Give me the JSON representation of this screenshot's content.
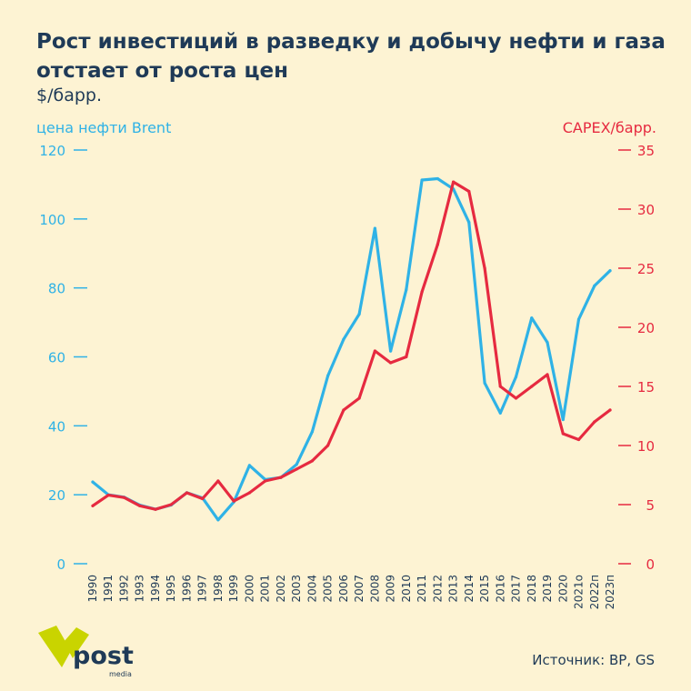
{
  "title": "Рост инвестиций в разведку и добычу нефти и газа отстает от роста цен",
  "subtitle": "$/барр.",
  "left_axis_label": "цена нефти Brent",
  "right_axis_label": "CAPEX/барр.",
  "source": "Источник: BP, GS",
  "logo": {
    "text": "post",
    "subtext": "media",
    "color": "#c9d400"
  },
  "colors": {
    "background": "#fdf3d3",
    "brent": "#2fb2e6",
    "capex": "#e62a40",
    "text": "#1f3a57"
  },
  "chart_data": {
    "type": "line",
    "title": "Рост инвестиций в разведку и добычу нефти и газа отстает от роста цен",
    "x": [
      "1990",
      "1991",
      "1992",
      "1993",
      "1994",
      "1995",
      "1996",
      "1997",
      "1998",
      "1999",
      "2000",
      "2001",
      "2002",
      "2003",
      "2004",
      "2005",
      "2006",
      "2007",
      "2008",
      "2009",
      "2010",
      "2011",
      "2012",
      "2013",
      "2014",
      "2015",
      "2016",
      "2017",
      "2018",
      "2019",
      "2020",
      "2021о",
      "2022п",
      "2023п"
    ],
    "y_left": {
      "label": "цена нефти Brent",
      "range": [
        0,
        120
      ],
      "ticks": [
        0,
        20,
        40,
        60,
        80,
        100,
        120
      ]
    },
    "y_right": {
      "label": "CAPEX/барр.",
      "range": [
        0,
        35
      ],
      "ticks": [
        0,
        5,
        10,
        15,
        20,
        25,
        30,
        35
      ]
    },
    "series": [
      {
        "name": "цена нефти Brent",
        "axis": "left",
        "color": "#2fb2e6",
        "values": [
          23.7,
          20.0,
          19.3,
          17.0,
          15.8,
          17.0,
          20.6,
          19.1,
          12.7,
          17.9,
          28.5,
          24.4,
          25.0,
          28.8,
          38.3,
          54.5,
          65.1,
          72.4,
          97.3,
          61.7,
          79.5,
          111.3,
          111.7,
          108.7,
          99.0,
          52.4,
          43.7,
          54.2,
          71.3,
          64.2,
          41.8,
          70.9,
          80.6,
          85.0
        ]
      },
      {
        "name": "CAPEX/барр.",
        "axis": "right",
        "color": "#e62a40",
        "values": [
          4.9,
          5.8,
          5.6,
          4.9,
          4.6,
          5.0,
          6.0,
          5.5,
          7.0,
          5.3,
          6.0,
          7.0,
          7.3,
          8.0,
          8.7,
          10.0,
          13.0,
          14.0,
          18.0,
          17.0,
          17.5,
          23.0,
          27.0,
          32.3,
          31.5,
          25.0,
          15.0,
          14.0,
          15.0,
          16.0,
          11.0,
          10.5,
          12.0,
          13.0
        ]
      }
    ]
  }
}
